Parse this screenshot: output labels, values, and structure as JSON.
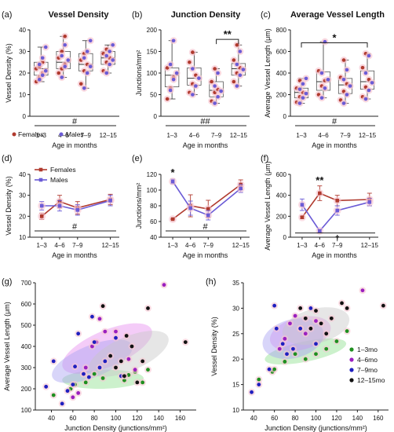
{
  "figure": {
    "panels": [
      "(a)",
      "(b)",
      "(c)",
      "(d)",
      "(e)",
      "(f)",
      "(g)",
      "(h)"
    ]
  },
  "chart_data": [
    {
      "id": "a",
      "label": "(a)",
      "type": "box",
      "title": "Vessel Density",
      "ylabel": "Vessel Density (%)",
      "xlabel": "Age in months",
      "categories": [
        "1–3",
        "4–6",
        "7–9",
        "12–15"
      ],
      "ylim": [
        0,
        40
      ],
      "yticks": [
        0,
        10,
        20,
        30,
        40
      ],
      "boxes": [
        {
          "min": 16,
          "q1": 19,
          "median": 22,
          "q3": 25,
          "max": 32
        },
        {
          "min": 18,
          "q1": 22,
          "median": 25,
          "q3": 30,
          "max": 37
        },
        {
          "min": 13,
          "q1": 21,
          "median": 24,
          "q3": 29,
          "max": 35
        },
        {
          "min": 20,
          "q1": 24,
          "median": 27,
          "q3": 30,
          "max": 33
        }
      ],
      "points_females": [
        [
          16,
          18,
          20,
          22,
          23,
          25
        ],
        [
          20,
          22,
          24,
          27,
          30,
          37
        ],
        [
          15,
          21,
          24,
          26,
          29
        ],
        [
          21,
          25,
          27,
          29,
          31
        ]
      ],
      "points_males": [
        [
          17,
          19,
          21,
          24,
          27,
          32
        ],
        [
          18,
          23,
          26,
          28,
          33
        ],
        [
          13,
          20,
          23,
          27,
          30,
          35
        ],
        [
          20,
          24,
          26,
          28,
          30,
          33
        ]
      ],
      "annotation": "#",
      "legend": [
        "Females",
        "Males"
      ],
      "colors": {
        "female": "#b03a2e",
        "male": "#6b5bd6",
        "box": "#f3b7c4"
      }
    },
    {
      "id": "b",
      "label": "(b)",
      "type": "box",
      "title": "Junction Density",
      "ylabel": "Junctions/mm²",
      "xlabel": "Age in months",
      "categories": [
        "1–3",
        "4–6",
        "7–9",
        "12–15"
      ],
      "ylim": [
        0,
        200
      ],
      "yticks": [
        0,
        50,
        100,
        150,
        200
      ],
      "boxes": [
        {
          "min": 40,
          "q1": 68,
          "median": 95,
          "q3": 112,
          "max": 175
        },
        {
          "min": 50,
          "q1": 72,
          "median": 88,
          "q3": 112,
          "max": 148
        },
        {
          "min": 30,
          "q1": 45,
          "median": 60,
          "q3": 80,
          "max": 110
        },
        {
          "min": 70,
          "q1": 95,
          "median": 110,
          "q3": 122,
          "max": 165
        }
      ],
      "points_females": [
        [
          40,
          65,
          90,
          112
        ],
        [
          55,
          75,
          95,
          125,
          148
        ],
        [
          35,
          55,
          62,
          80,
          110
        ],
        [
          80,
          100,
          112,
          130,
          165
        ]
      ],
      "points_males": [
        [
          60,
          85,
          100,
          120,
          175
        ],
        [
          50,
          70,
          88,
          110
        ],
        [
          30,
          45,
          58,
          70,
          100
        ],
        [
          70,
          95,
          108,
          120,
          150
        ]
      ],
      "bracket": {
        "from": 2,
        "to": 3,
        "label": "**",
        "y": 178
      },
      "annotation": "##"
    },
    {
      "id": "c",
      "label": "(c)",
      "type": "box",
      "title": "Average Vessel Length",
      "ylabel": "Average Vessel Length (μm)",
      "xlabel": "Age in months",
      "categories": [
        "1–3",
        "4–6",
        "7–9",
        "12–15"
      ],
      "ylim": [
        0,
        800
      ],
      "yticks": [
        0,
        200,
        400,
        600,
        800
      ],
      "boxes": [
        {
          "min": 120,
          "q1": 170,
          "median": 220,
          "q3": 260,
          "max": 350
        },
        {
          "min": 170,
          "q1": 240,
          "median": 320,
          "q3": 410,
          "max": 690
        },
        {
          "min": 120,
          "q1": 210,
          "median": 290,
          "q3": 350,
          "max": 520
        },
        {
          "min": 160,
          "q1": 250,
          "median": 320,
          "q3": 420,
          "max": 580
        }
      ],
      "points_females": [
        [
          130,
          180,
          220,
          260,
          330
        ],
        [
          200,
          280,
          330,
          420
        ],
        [
          150,
          230,
          300,
          360,
          520
        ],
        [
          180,
          270,
          340,
          450,
          580
        ]
      ],
      "points_males": [
        [
          120,
          170,
          210,
          250,
          300,
          350
        ],
        [
          170,
          260,
          340,
          400,
          690
        ],
        [
          120,
          200,
          280,
          340,
          430
        ],
        [
          160,
          240,
          310,
          400,
          560
        ]
      ],
      "bracket": {
        "from": 0,
        "to": 3,
        "label": "*",
        "y": 680
      },
      "annotation": "#"
    },
    {
      "id": "d",
      "label": "(d)",
      "type": "line",
      "ylabel": "Vessel Density (%)",
      "xlabel": "Age in months",
      "categories": [
        "1–3",
        "4–6",
        "7–9",
        "12–15"
      ],
      "x": [
        2,
        5,
        8,
        13.5
      ],
      "xlim": [
        0,
        15
      ],
      "ylim": [
        10,
        40
      ],
      "yticks": [
        10,
        20,
        30,
        40
      ],
      "series": [
        {
          "name": "Females",
          "values": [
            20,
            27,
            24,
            28
          ],
          "err": [
            1.5,
            3,
            3,
            2.5
          ],
          "color": "#b03a2e"
        },
        {
          "name": "Males",
          "values": [
            25,
            25,
            23,
            27.5
          ],
          "err": [
            2,
            2.5,
            2.5,
            2.5
          ],
          "color": "#6b5bd6"
        }
      ],
      "annotation": "#"
    },
    {
      "id": "e",
      "label": "(e)",
      "type": "line",
      "ylabel": "Junctions/mm²",
      "xlabel": "Age in months",
      "categories": [
        "1–3",
        "4–6",
        "7–9",
        "12–15"
      ],
      "x": [
        2,
        5,
        8,
        13.5
      ],
      "xlim": [
        0,
        15
      ],
      "ylim": [
        40,
        120
      ],
      "yticks": [
        40,
        60,
        80,
        100,
        120
      ],
      "series": [
        {
          "name": "Females",
          "values": [
            63,
            80,
            76,
            107
          ],
          "err": [
            0.5,
            14,
            11,
            6
          ],
          "color": "#b03a2e"
        },
        {
          "name": "Males",
          "values": [
            111,
            77,
            68,
            102
          ],
          "err": [
            3,
            9,
            6,
            5
          ],
          "color": "#6b5bd6"
        }
      ],
      "stars": [
        {
          "x": 2,
          "label": "*",
          "y": 118
        }
      ],
      "annotation": "#"
    },
    {
      "id": "f",
      "label": "(f)",
      "type": "line",
      "ylabel": "Average Vessel Length (μm)",
      "xlabel": "Age in months",
      "categories": [
        "1–3",
        "4–6",
        "7–9",
        "12–15"
      ],
      "x": [
        2,
        5,
        8,
        13.5
      ],
      "xlim": [
        0,
        15
      ],
      "ylim": [
        0,
        600
      ],
      "yticks": [
        0,
        200,
        400,
        600
      ],
      "series": [
        {
          "name": "Females",
          "values": [
            190,
            420,
            350,
            360
          ],
          "err": [
            10,
            70,
            50,
            60
          ],
          "color": "#b03a2e"
        },
        {
          "name": "Males",
          "values": [
            310,
            60,
            255,
            335
          ],
          "err": [
            55,
            10,
            45,
            35
          ],
          "color": "#6b5bd6"
        }
      ],
      "stars": [
        {
          "x": 5,
          "label": "**",
          "y": 510
        }
      ],
      "dagger": {
        "x": 8,
        "label": "†",
        "y": 40
      }
    },
    {
      "id": "g",
      "label": "(g)",
      "type": "scatter",
      "xlabel": "Junction Density (junctions/mm²)",
      "ylabel": "Average Vessel Length (μm)",
      "xlim": [
        25,
        175
      ],
      "ylim": [
        100,
        700
      ],
      "xticks": [
        40,
        60,
        80,
        100,
        120,
        140,
        160
      ],
      "yticks": [
        100,
        200,
        300,
        400,
        500,
        600,
        700
      ],
      "ellipses": [
        {
          "group": "1–3mo",
          "cx": 88,
          "cy": 245,
          "rx": 38,
          "ry": 45,
          "angle": 0.05
        },
        {
          "group": "4–6mo",
          "cx": 92,
          "cy": 390,
          "rx": 45,
          "ry": 85,
          "angle": 0.9
        },
        {
          "group": "7–9mo",
          "cx": 78,
          "cy": 330,
          "rx": 40,
          "ry": 75,
          "angle": 0.85
        },
        {
          "group": "12–15mo",
          "cx": 112,
          "cy": 365,
          "rx": 40,
          "ry": 80,
          "angle": 0.9
        }
      ],
      "series": [
        {
          "name": "1–3mo",
          "color": "#1f8f1f",
          "points": [
            [
              42,
              170
            ],
            [
              58,
              200
            ],
            [
              62,
              220
            ],
            [
              72,
              230
            ],
            [
              80,
              270
            ],
            [
              88,
              250
            ],
            [
              108,
              240
            ],
            [
              112,
              265
            ],
            [
              118,
              280
            ],
            [
              125,
              230
            ],
            [
              130,
              290
            ]
          ]
        },
        {
          "name": "4–6mo",
          "color": "#9b1fbf",
          "points": [
            [
              60,
              160
            ],
            [
              65,
              180
            ],
            [
              70,
              270
            ],
            [
              72,
              300
            ],
            [
              78,
              400
            ],
            [
              82,
              420
            ],
            [
              85,
              530
            ],
            [
              90,
              470
            ],
            [
              100,
              470
            ],
            [
              112,
              340
            ],
            [
              118,
              290
            ],
            [
              145,
              690
            ]
          ]
        },
        {
          "name": "7–9mo",
          "color": "#1f1fbf",
          "points": [
            [
              35,
              210
            ],
            [
              42,
              330
            ],
            [
              50,
              130
            ],
            [
              55,
              190
            ],
            [
              60,
              220
            ],
            [
              62,
              305
            ],
            [
              65,
              460
            ],
            [
              70,
              270
            ],
            [
              75,
              255
            ],
            [
              78,
              540
            ],
            [
              80,
              420
            ],
            [
              85,
              300
            ],
            [
              90,
              330
            ],
            [
              100,
              440
            ],
            [
              105,
              260
            ]
          ]
        },
        {
          "name": "12–15mo",
          "color": "#111111",
          "points": [
            [
              88,
              590
            ],
            [
              95,
              355
            ],
            [
              100,
              300
            ],
            [
              105,
              330
            ],
            [
              108,
              260
            ],
            [
              110,
              450
            ],
            [
              115,
              400
            ],
            [
              120,
              230
            ],
            [
              125,
              330
            ],
            [
              130,
              580
            ],
            [
              165,
              420
            ]
          ]
        }
      ]
    },
    {
      "id": "h",
      "label": "(h)",
      "type": "scatter",
      "xlabel": "Junction Density (junctions/mm²)",
      "ylabel": "Vessel Density (%)",
      "xlim": [
        30,
        170
      ],
      "ylim": [
        10,
        35
      ],
      "xticks": [
        40,
        60,
        80,
        100,
        120,
        140,
        160
      ],
      "yticks": [
        10,
        15,
        20,
        25,
        30,
        35
      ],
      "ellipses": [
        {
          "group": "1–3mo",
          "cx": 90,
          "cy": 21.5,
          "rx": 40,
          "ry": 2.0,
          "angle": 0.45
        },
        {
          "group": "4–6mo",
          "cx": 85,
          "cy": 25,
          "rx": 30,
          "ry": 3.2,
          "angle": 0.55
        },
        {
          "group": "7–9mo",
          "cx": 78,
          "cy": 24,
          "rx": 30,
          "ry": 3.8,
          "angle": 0.55
        },
        {
          "group": "12–15mo",
          "cx": 100,
          "cy": 26.5,
          "rx": 33,
          "ry": 3.4,
          "angle": 0.55
        }
      ],
      "series": [
        {
          "name": "1–3mo",
          "color": "#1f8f1f",
          "points": [
            [
              45,
              16
            ],
            [
              58,
              17.5
            ],
            [
              60,
              18
            ],
            [
              70,
              19.5
            ],
            [
              80,
              21
            ],
            [
              90,
              20
            ],
            [
              100,
              21
            ],
            [
              110,
              22
            ],
            [
              120,
              23.5
            ],
            [
              130,
              25.5
            ]
          ]
        },
        {
          "name": "4–6mo",
          "color": "#9b1fbf",
          "points": [
            [
              65,
              22
            ],
            [
              70,
              24
            ],
            [
              75,
              27
            ],
            [
              80,
              28.5
            ],
            [
              85,
              26
            ],
            [
              90,
              25
            ],
            [
              100,
              27.5
            ],
            [
              145,
              33.5
            ]
          ]
        },
        {
          "name": "7–9mo",
          "color": "#1f1fbf",
          "points": [
            [
              38,
              13.5
            ],
            [
              45,
              15
            ],
            [
              55,
              18
            ],
            [
              60,
              30.5
            ],
            [
              62,
              26
            ],
            [
              68,
              23
            ],
            [
              72,
              21
            ],
            [
              78,
              22
            ],
            [
              85,
              26
            ],
            [
              95,
              30
            ],
            [
              100,
              23
            ]
          ]
        },
        {
          "name": "12–15mo",
          "color": "#111111",
          "points": [
            [
              85,
              30
            ],
            [
              90,
              28
            ],
            [
              95,
              26
            ],
            [
              100,
              29.5
            ],
            [
              105,
              27
            ],
            [
              110,
              25
            ],
            [
              115,
              28
            ],
            [
              125,
              31
            ],
            [
              130,
              30
            ],
            [
              165,
              30.5
            ]
          ]
        }
      ],
      "legend": [
        "1–3mo",
        "4–6mo",
        "7–9mo",
        "12–15mo"
      ]
    }
  ]
}
